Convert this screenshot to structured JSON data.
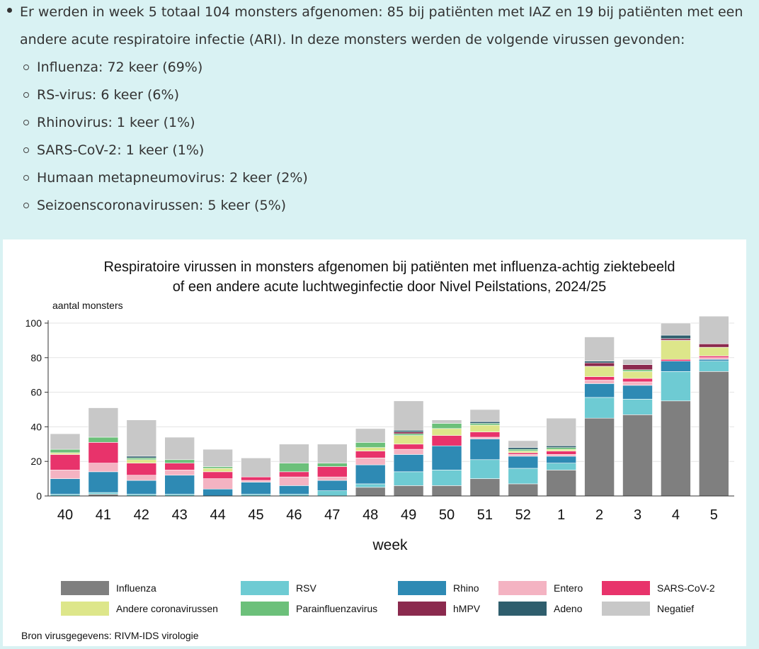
{
  "intro": {
    "line1": "Er werden in week 5 totaal 104 monsters afgenomen: 85 bij patiënten met IAZ en 19 bij patiënten met een",
    "line2": "andere acute respiratoire infectie (ARI). In deze monsters werden de volgende virussen gevonden:",
    "items": [
      "Influenza: 72 keer (69%)",
      "RS-virus: 6 keer (6%)",
      "Rhinovirus: 1 keer (1%)",
      "SARS-CoV-2: 1 keer (1%)",
      "Humaan metapneumovirus: 2 keer (2%)",
      "Seizoenscoronavirussen: 5 keer (5%)"
    ]
  },
  "chart_data": {
    "type": "bar",
    "stacked": true,
    "title_line1": "Respiratoire virussen in monsters afgenomen bij patiënten met influenza-achtig ziektebeeld",
    "title_line2": "of een andere acute luchtweginfectie door Nivel Peilstations, 2024/25",
    "ylabel": "aantal monsters",
    "xlabel": "week",
    "ylim": [
      0,
      100
    ],
    "yticks": [
      0,
      20,
      40,
      60,
      80,
      100
    ],
    "legend_position": "bottom",
    "source": "Bron virusgegevens: RIVM-IDS virologie",
    "categories": [
      "40",
      "41",
      "42",
      "43",
      "44",
      "45",
      "46",
      "47",
      "48",
      "49",
      "50",
      "51",
      "52",
      "1",
      "2",
      "3",
      "4",
      "5"
    ],
    "series": [
      {
        "name": "Influenza",
        "color": "#7f7f7f",
        "values": [
          0,
          1,
          0,
          0,
          0,
          0,
          0,
          0,
          5,
          6,
          6,
          10,
          7,
          15,
          45,
          47,
          55,
          72
        ]
      },
      {
        "name": "RSV",
        "color": "#6ecbd3",
        "values": [
          1,
          1,
          1,
          1,
          0,
          1,
          1,
          3,
          2,
          8,
          9,
          11,
          9,
          4,
          12,
          9,
          17,
          6
        ]
      },
      {
        "name": "Rhino",
        "color": "#2e8ab4",
        "values": [
          9,
          12,
          8,
          11,
          4,
          7,
          5,
          6,
          11,
          10,
          14,
          12,
          7,
          4,
          8,
          8,
          6,
          1
        ]
      },
      {
        "name": "Entero",
        "color": "#f4b3c2",
        "values": [
          5,
          5,
          3,
          3,
          6,
          1,
          5,
          2,
          4,
          3,
          0,
          1,
          1,
          1,
          2,
          2,
          0,
          1
        ]
      },
      {
        "name": "SARS-CoV-2",
        "color": "#e8336b",
        "values": [
          9,
          12,
          7,
          4,
          4,
          2,
          3,
          6,
          4,
          3,
          6,
          3,
          1,
          2,
          2,
          2,
          1,
          1
        ]
      },
      {
        "name": "Andere coronavirussen",
        "color": "#dde68a",
        "values": [
          1,
          0,
          2,
          0,
          2,
          0,
          0,
          0,
          2,
          5,
          4,
          4,
          1,
          1,
          6,
          4,
          11,
          5
        ]
      },
      {
        "name": "Parainfluenzavirus",
        "color": "#6cc07a",
        "values": [
          2,
          3,
          1,
          2,
          1,
          0,
          5,
          2,
          3,
          1,
          3,
          1,
          1,
          1,
          0,
          1,
          0,
          0
        ]
      },
      {
        "name": "hMPV",
        "color": "#8b2a4e",
        "values": [
          0,
          0,
          0,
          0,
          0,
          0,
          0,
          0,
          0,
          1,
          0,
          0,
          0,
          0,
          2,
          3,
          1,
          2
        ]
      },
      {
        "name": "Adeno",
        "color": "#2f5e6d",
        "values": [
          0,
          0,
          1,
          0,
          0,
          0,
          0,
          0,
          0,
          1,
          0,
          1,
          1,
          1,
          1,
          0,
          2,
          0
        ]
      },
      {
        "name": "Negatief",
        "color": "#c8c8c8",
        "values": [
          9,
          17,
          21,
          13,
          10,
          11,
          11,
          11,
          8,
          17,
          2,
          7,
          4,
          16,
          14,
          3,
          7,
          16
        ]
      }
    ]
  }
}
